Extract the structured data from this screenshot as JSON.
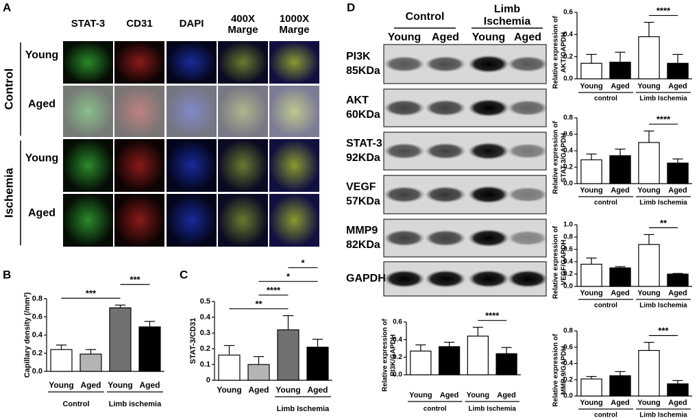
{
  "panel_a": {
    "letter": "A",
    "columns": [
      [
        "STAT-3"
      ],
      [
        "CD31"
      ],
      [
        "DAPI"
      ],
      [
        "400X",
        "Marge"
      ],
      [
        "1000X",
        "Marge"
      ]
    ],
    "groups": [
      {
        "label": "Control",
        "rows": [
          "Young",
          "Aged"
        ]
      },
      {
        "label": "Ischemia",
        "rows": [
          "Young",
          "Aged"
        ]
      }
    ]
  },
  "panel_d": {
    "letter": "D",
    "groups": [
      [
        "Control"
      ],
      [
        "Limb",
        "Ischemia"
      ]
    ],
    "lanes": [
      "Young",
      "Aged",
      "Young",
      "Aged"
    ],
    "blots": [
      [
        "PI3K",
        "85KDa"
      ],
      [
        "AKT",
        "60KDa"
      ],
      [
        "STAT-3",
        "92KDa"
      ],
      [
        "VEGF",
        "57KDa"
      ],
      [
        "MMP9",
        "82KDa"
      ],
      [
        "GAPDH"
      ]
    ]
  },
  "chart_data": [
    {
      "type": "bar",
      "letter": "B",
      "ylabel": [
        "Capillary density (/mm²)"
      ],
      "categories": [
        "Young",
        "Aged",
        "Young",
        "Aged"
      ],
      "values": [
        0.24,
        0.19,
        0.7,
        0.49
      ],
      "errors": [
        0.05,
        0.05,
        0.03,
        0.06
      ],
      "colors": [
        "#ffffff",
        "#b4b4b4",
        "#707070",
        "#000000"
      ],
      "ylim": [
        0,
        0.8
      ],
      "yticks": [
        {
          "value": 0,
          "label": "0.0"
        },
        0.2,
        0.4,
        0.6,
        0.8
      ],
      "groups": [
        {
          "label": "Control",
          "bars": [
            0,
            1
          ]
        },
        {
          "label": "Limb ischemia",
          "bars": [
            2,
            3
          ]
        }
      ],
      "annotations": [
        {
          "label": "***",
          "bars": [
            0,
            2
          ]
        },
        {
          "label": "***",
          "bars": [
            2,
            3
          ]
        }
      ]
    },
    {
      "type": "bar",
      "letter": "C",
      "ylabel": [
        "STAT-3/CD31"
      ],
      "categories": [
        "Young",
        "Aged",
        "Young",
        "Aged"
      ],
      "values": [
        0.16,
        0.1,
        0.32,
        0.21
      ],
      "errors": [
        0.06,
        0.05,
        0.09,
        0.05
      ],
      "colors": [
        "#ffffff",
        "#b4b4b4",
        "#707070",
        "#000000"
      ],
      "ylim": [
        0,
        0.5
      ],
      "yticks": [
        0,
        0.1,
        0.2,
        0.3,
        0.4,
        0.5
      ],
      "groups": [
        {
          "label": "Limb Ischemia",
          "bars": [
            2,
            3
          ]
        }
      ],
      "annotations": [
        {
          "label": "**",
          "bars": [
            0,
            2
          ]
        },
        {
          "label": "****",
          "bars": [
            1,
            2
          ]
        },
        {
          "label": "*",
          "bars": [
            1,
            3
          ]
        },
        {
          "label": "*",
          "bars": [
            2,
            3
          ]
        }
      ]
    },
    {
      "type": "bar",
      "ylabel": [
        "Relative expression of",
        "PI3K/GAPDH"
      ],
      "categories": [
        "Young",
        "Aged",
        "Young",
        "Aged"
      ],
      "values": [
        0.27,
        0.32,
        0.44,
        0.24
      ],
      "errors": [
        0.07,
        0.05,
        0.1,
        0.07
      ],
      "colors": [
        "#ffffff",
        "#000000",
        "#ffffff",
        "#000000"
      ],
      "ylim": [
        0,
        0.6
      ],
      "yticks": [
        {
          "value": 0,
          "label": "0.0"
        },
        0.2,
        0.4,
        0.6
      ],
      "groups": [
        {
          "label": "control",
          "bars": [
            0,
            1
          ]
        },
        {
          "label": "Limb Ischemia",
          "bars": [
            2,
            3
          ]
        }
      ],
      "annotations": [
        {
          "label": "****",
          "bars": [
            2,
            3
          ]
        }
      ]
    },
    {
      "type": "bar",
      "ylabel": [
        "Relative expression of",
        "AKT/GAPDH"
      ],
      "categories": [
        "Young",
        "Aged",
        "Young",
        "Aged"
      ],
      "values": [
        0.14,
        0.15,
        0.38,
        0.14
      ],
      "errors": [
        0.08,
        0.09,
        0.13,
        0.08
      ],
      "colors": [
        "#ffffff",
        "#000000",
        "#ffffff",
        "#000000"
      ],
      "ylim": [
        0,
        0.6
      ],
      "yticks": [
        {
          "value": 0,
          "label": "0.0"
        },
        0.2,
        0.4,
        0.6
      ],
      "groups": [
        {
          "label": "control",
          "bars": [
            0,
            1
          ]
        },
        {
          "label": "Limb Ischemia",
          "bars": [
            2,
            3
          ]
        }
      ],
      "annotations": [
        {
          "label": "****",
          "bars": [
            2,
            3
          ]
        }
      ]
    },
    {
      "type": "bar",
      "ylabel": [
        "Relative expression of",
        "STAT-3/GAPDH"
      ],
      "categories": [
        "Young",
        "Aged",
        "Young",
        "Aged"
      ],
      "values": [
        0.29,
        0.34,
        0.5,
        0.25
      ],
      "errors": [
        0.07,
        0.08,
        0.14,
        0.05
      ],
      "colors": [
        "#ffffff",
        "#000000",
        "#ffffff",
        "#000000"
      ],
      "ylim": [
        0,
        0.8
      ],
      "yticks": [
        {
          "value": 0,
          "label": "0.0"
        },
        0.2,
        0.4,
        0.6,
        0.8
      ],
      "groups": [
        {
          "label": "control",
          "bars": [
            0,
            1
          ]
        },
        {
          "label": "Limb Ischemia",
          "bars": [
            2,
            3
          ]
        }
      ],
      "annotations": [
        {
          "label": "****",
          "bars": [
            2,
            3
          ]
        }
      ]
    },
    {
      "type": "bar",
      "ylabel": [
        "Relative expression of",
        "VEGF/GAPDH"
      ],
      "categories": [
        "Young",
        "Aged",
        "Young",
        "Aged"
      ],
      "values": [
        0.36,
        0.3,
        0.68,
        0.2
      ],
      "errors": [
        0.1,
        0.02,
        0.16,
        0.01
      ],
      "colors": [
        "#ffffff",
        "#000000",
        "#ffffff",
        "#000000"
      ],
      "ylim": [
        0,
        1
      ],
      "yticks": [
        {
          "value": 0,
          "label": "0.0"
        },
        0.2,
        0.4,
        0.6,
        0.8,
        {
          "value": 1,
          "label": "1.0"
        }
      ],
      "groups": [
        {
          "label": "control",
          "bars": [
            0,
            1
          ]
        },
        {
          "label": "Limb Ischemia",
          "bars": [
            2,
            3
          ]
        }
      ],
      "annotations": [
        {
          "label": "**",
          "bars": [
            2,
            3
          ]
        }
      ]
    },
    {
      "type": "bar",
      "ylabel": [
        "Relative expression of",
        "MMP-9/GAPDH"
      ],
      "categories": [
        "Young",
        "Aged",
        "Young",
        "Aged"
      ],
      "values": [
        0.21,
        0.25,
        0.56,
        0.15
      ],
      "errors": [
        0.03,
        0.05,
        0.1,
        0.04
      ],
      "colors": [
        "#ffffff",
        "#000000",
        "#ffffff",
        "#000000"
      ],
      "ylim": [
        0,
        0.8
      ],
      "yticks": [
        {
          "value": 0,
          "label": "0.0"
        },
        0.2,
        0.4,
        0.6,
        0.8
      ],
      "groups": [
        {
          "label": "control",
          "bars": [
            0,
            1
          ]
        },
        {
          "label": "Limb Ischemia",
          "bars": [
            2,
            3
          ]
        }
      ],
      "annotations": [
        {
          "label": "***",
          "bars": [
            2,
            3
          ]
        }
      ]
    }
  ]
}
